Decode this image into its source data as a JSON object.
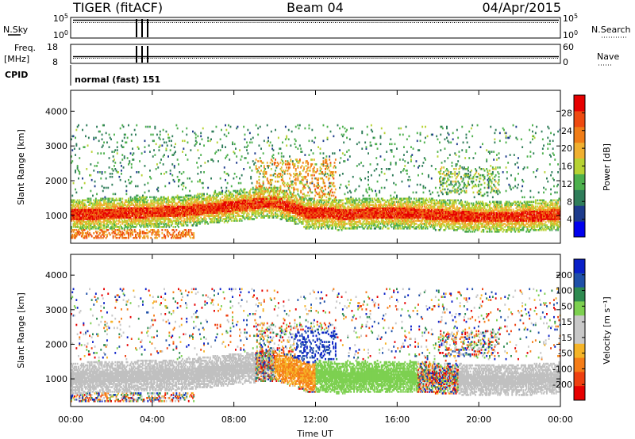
{
  "header": {
    "radar": "TIGER (fitACF)",
    "beam": "Beam 04",
    "date": "04/Apr/2015"
  },
  "aux_panels": {
    "nsky_label": "N.Sky",
    "nsky_ticks": [
      "10^5",
      "10^0"
    ],
    "nsearch_label": "N.Search",
    "nsearch_ticks": [
      "10^5",
      "10^0"
    ],
    "freq_label_1": "Freq.",
    "freq_label_2": "[MHz]",
    "freq_ticks": [
      "18",
      "8"
    ],
    "nave_label": "Nave",
    "nave_ticks": [
      "60",
      "0"
    ],
    "cpid_label": "CPID",
    "cpid_value": "normal (fast) 151"
  },
  "colors": {
    "power_scale": [
      "#0000ee",
      "#1d3b8c",
      "#2f7d5a",
      "#4db04d",
      "#b7d233",
      "#f0b030",
      "#f07d18",
      "#ee4a10",
      "#e60000"
    ],
    "velocity_scale": [
      "#0a20c8",
      "#1f50a8",
      "#2e8a50",
      "#7dd050",
      "#c8c8c8",
      "#c8c8c8",
      "#f5b428",
      "#f57d18",
      "#ee4010",
      "#e60000"
    ],
    "ground_scatter": "#c0c0c0"
  },
  "chart_data": [
    {
      "type": "heatmap",
      "title": "",
      "xlabel": "",
      "ylabel": "Slant Range [km]",
      "xlim": [
        0,
        24
      ],
      "ylim": [
        200,
        4600
      ],
      "x_ticks": [
        "00:00",
        "04:00",
        "08:00",
        "12:00",
        "16:00",
        "20:00",
        "00:00"
      ],
      "y_ticks": [
        1000,
        2000,
        3000,
        4000
      ],
      "colorbar_label": "Power [dB]",
      "colorbar_ticks": [
        4,
        8,
        12,
        16,
        20,
        24,
        28
      ],
      "colorbar_range": [
        0,
        30
      ]
    },
    {
      "type": "heatmap",
      "title": "",
      "xlabel": "Time UT",
      "ylabel": "Slant Range [km]",
      "xlim": [
        0,
        24
      ],
      "ylim": [
        200,
        4600
      ],
      "x_ticks": [
        "00:00",
        "04:00",
        "08:00",
        "12:00",
        "16:00",
        "20:00",
        "00:00"
      ],
      "y_ticks": [
        1000,
        2000,
        3000,
        4000
      ],
      "colorbar_label": "Velocity [m s⁻¹]",
      "colorbar_ticks": [
        200,
        100,
        50,
        15,
        -15,
        -50,
        -100,
        -200
      ],
      "colorbar_range": [
        -250,
        250
      ]
    }
  ]
}
